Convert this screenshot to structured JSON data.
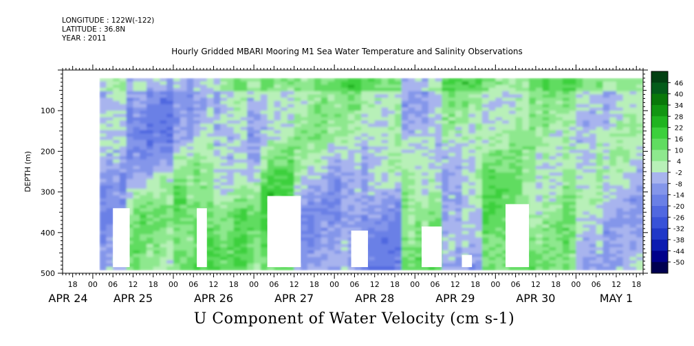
{
  "header": {
    "longitude": "LONGITUDE : 122W(-122)",
    "latitude": "LATITUDE : 36.8N",
    "year": "YEAR : 2011"
  },
  "chart_data": {
    "type": "heatmap",
    "title": "Hourly Gridded MBARI Mooring M1 Sea Water Temperature and Salinity Observations",
    "variable": "U Component of Water Velocity (cm s-1)",
    "ylabel": "DEPTH (m)",
    "ylim": [
      500,
      0
    ],
    "y_ticks": [
      100,
      200,
      300,
      400,
      500
    ],
    "x_range": [
      "2011-04-24T15:00",
      "2011-05-01T20:00"
    ],
    "x_hour_ticks": [
      "18",
      "00",
      "06",
      "12",
      "18",
      "00",
      "06",
      "12",
      "18",
      "00",
      "06",
      "12",
      "18",
      "00",
      "06",
      "12",
      "18",
      "00",
      "06",
      "12",
      "18",
      "00",
      "06",
      "12",
      "18",
      "00",
      "06",
      "12",
      "18"
    ],
    "x_day_labels": [
      "APR 24",
      "APR 25",
      "APR 26",
      "APR 27",
      "APR 28",
      "APR 29",
      "APR 30",
      "MAY  1"
    ],
    "colorbar": {
      "levels": [
        -50,
        -44,
        -38,
        -32,
        -26,
        -20,
        -14,
        -8,
        -2,
        4,
        10,
        16,
        22,
        28,
        34,
        40,
        46
      ],
      "labels": [
        "46",
        "40",
        "34",
        "28",
        "22",
        "16",
        "10",
        "4",
        "-2",
        "-8",
        "-14",
        "-20",
        "-26",
        "-32",
        "-38",
        "-44",
        "-50"
      ]
    },
    "data_depth_range": [
      20,
      485
    ],
    "data_start": "2011-04-25T02:00",
    "regimes": [
      {
        "from": "APR 25 02:00",
        "to": "APR 25 10:00",
        "upper_m": -5,
        "lower_m": -8
      },
      {
        "from": "APR 25 10:00",
        "to": "APR 26 00:00",
        "upper_m": -15,
        "lower_m": 6
      },
      {
        "from": "APR 26 00:00",
        "to": "APR 26 14:00",
        "upper_m": -8,
        "lower_m": 14
      },
      {
        "from": "APR 26 14:00",
        "to": "APR 27 02:00",
        "upper_m": -4,
        "lower_m": 10
      },
      {
        "from": "APR 27 02:00",
        "to": "APR 27 12:00",
        "upper_m": 2,
        "lower_m": 16
      },
      {
        "from": "APR 27 12:00",
        "to": "APR 28 04:00",
        "upper_m": 4,
        "lower_m": -10
      },
      {
        "from": "APR 28 04:00",
        "to": "APR 28 20:00",
        "upper_m": 4,
        "lower_m": -14
      },
      {
        "from": "APR 28 20:00",
        "to": "APR 29 08:00",
        "upper_m": -8,
        "lower_m": 12
      },
      {
        "from": "APR 29 08:00",
        "to": "APR 29 20:00",
        "upper_m": 5,
        "lower_m": -8
      },
      {
        "from": "APR 29 20:00",
        "to": "APR 30 10:00",
        "upper_m": 2,
        "lower_m": 14
      },
      {
        "from": "APR 30 10:00",
        "to": "MAY  1 00:00",
        "upper_m": 4,
        "lower_m": 6
      },
      {
        "from": "MAY  1 00:00",
        "to": "MAY  1 20:00",
        "upper_m": 0,
        "lower_m": -4
      }
    ],
    "missing_data_near_bottom": [
      {
        "from": "APR 25 06:00",
        "to": "APR 25 11:00",
        "top_m": 340
      },
      {
        "from": "APR 26 07:00",
        "to": "APR 26 10:00",
        "top_m": 340
      },
      {
        "from": "APR 27 04:00",
        "to": "APR 27 14:00",
        "top_m": 310
      },
      {
        "from": "APR 28 05:00",
        "to": "APR 28 10:00",
        "top_m": 395
      },
      {
        "from": "APR 29 02:00",
        "to": "APR 29 08:00",
        "top_m": 385
      },
      {
        "from": "APR 29 14:00",
        "to": "APR 29 17:00",
        "top_m": 455
      },
      {
        "from": "APR 30 03:00",
        "to": "APR 30 10:00",
        "top_m": 330
      }
    ]
  }
}
